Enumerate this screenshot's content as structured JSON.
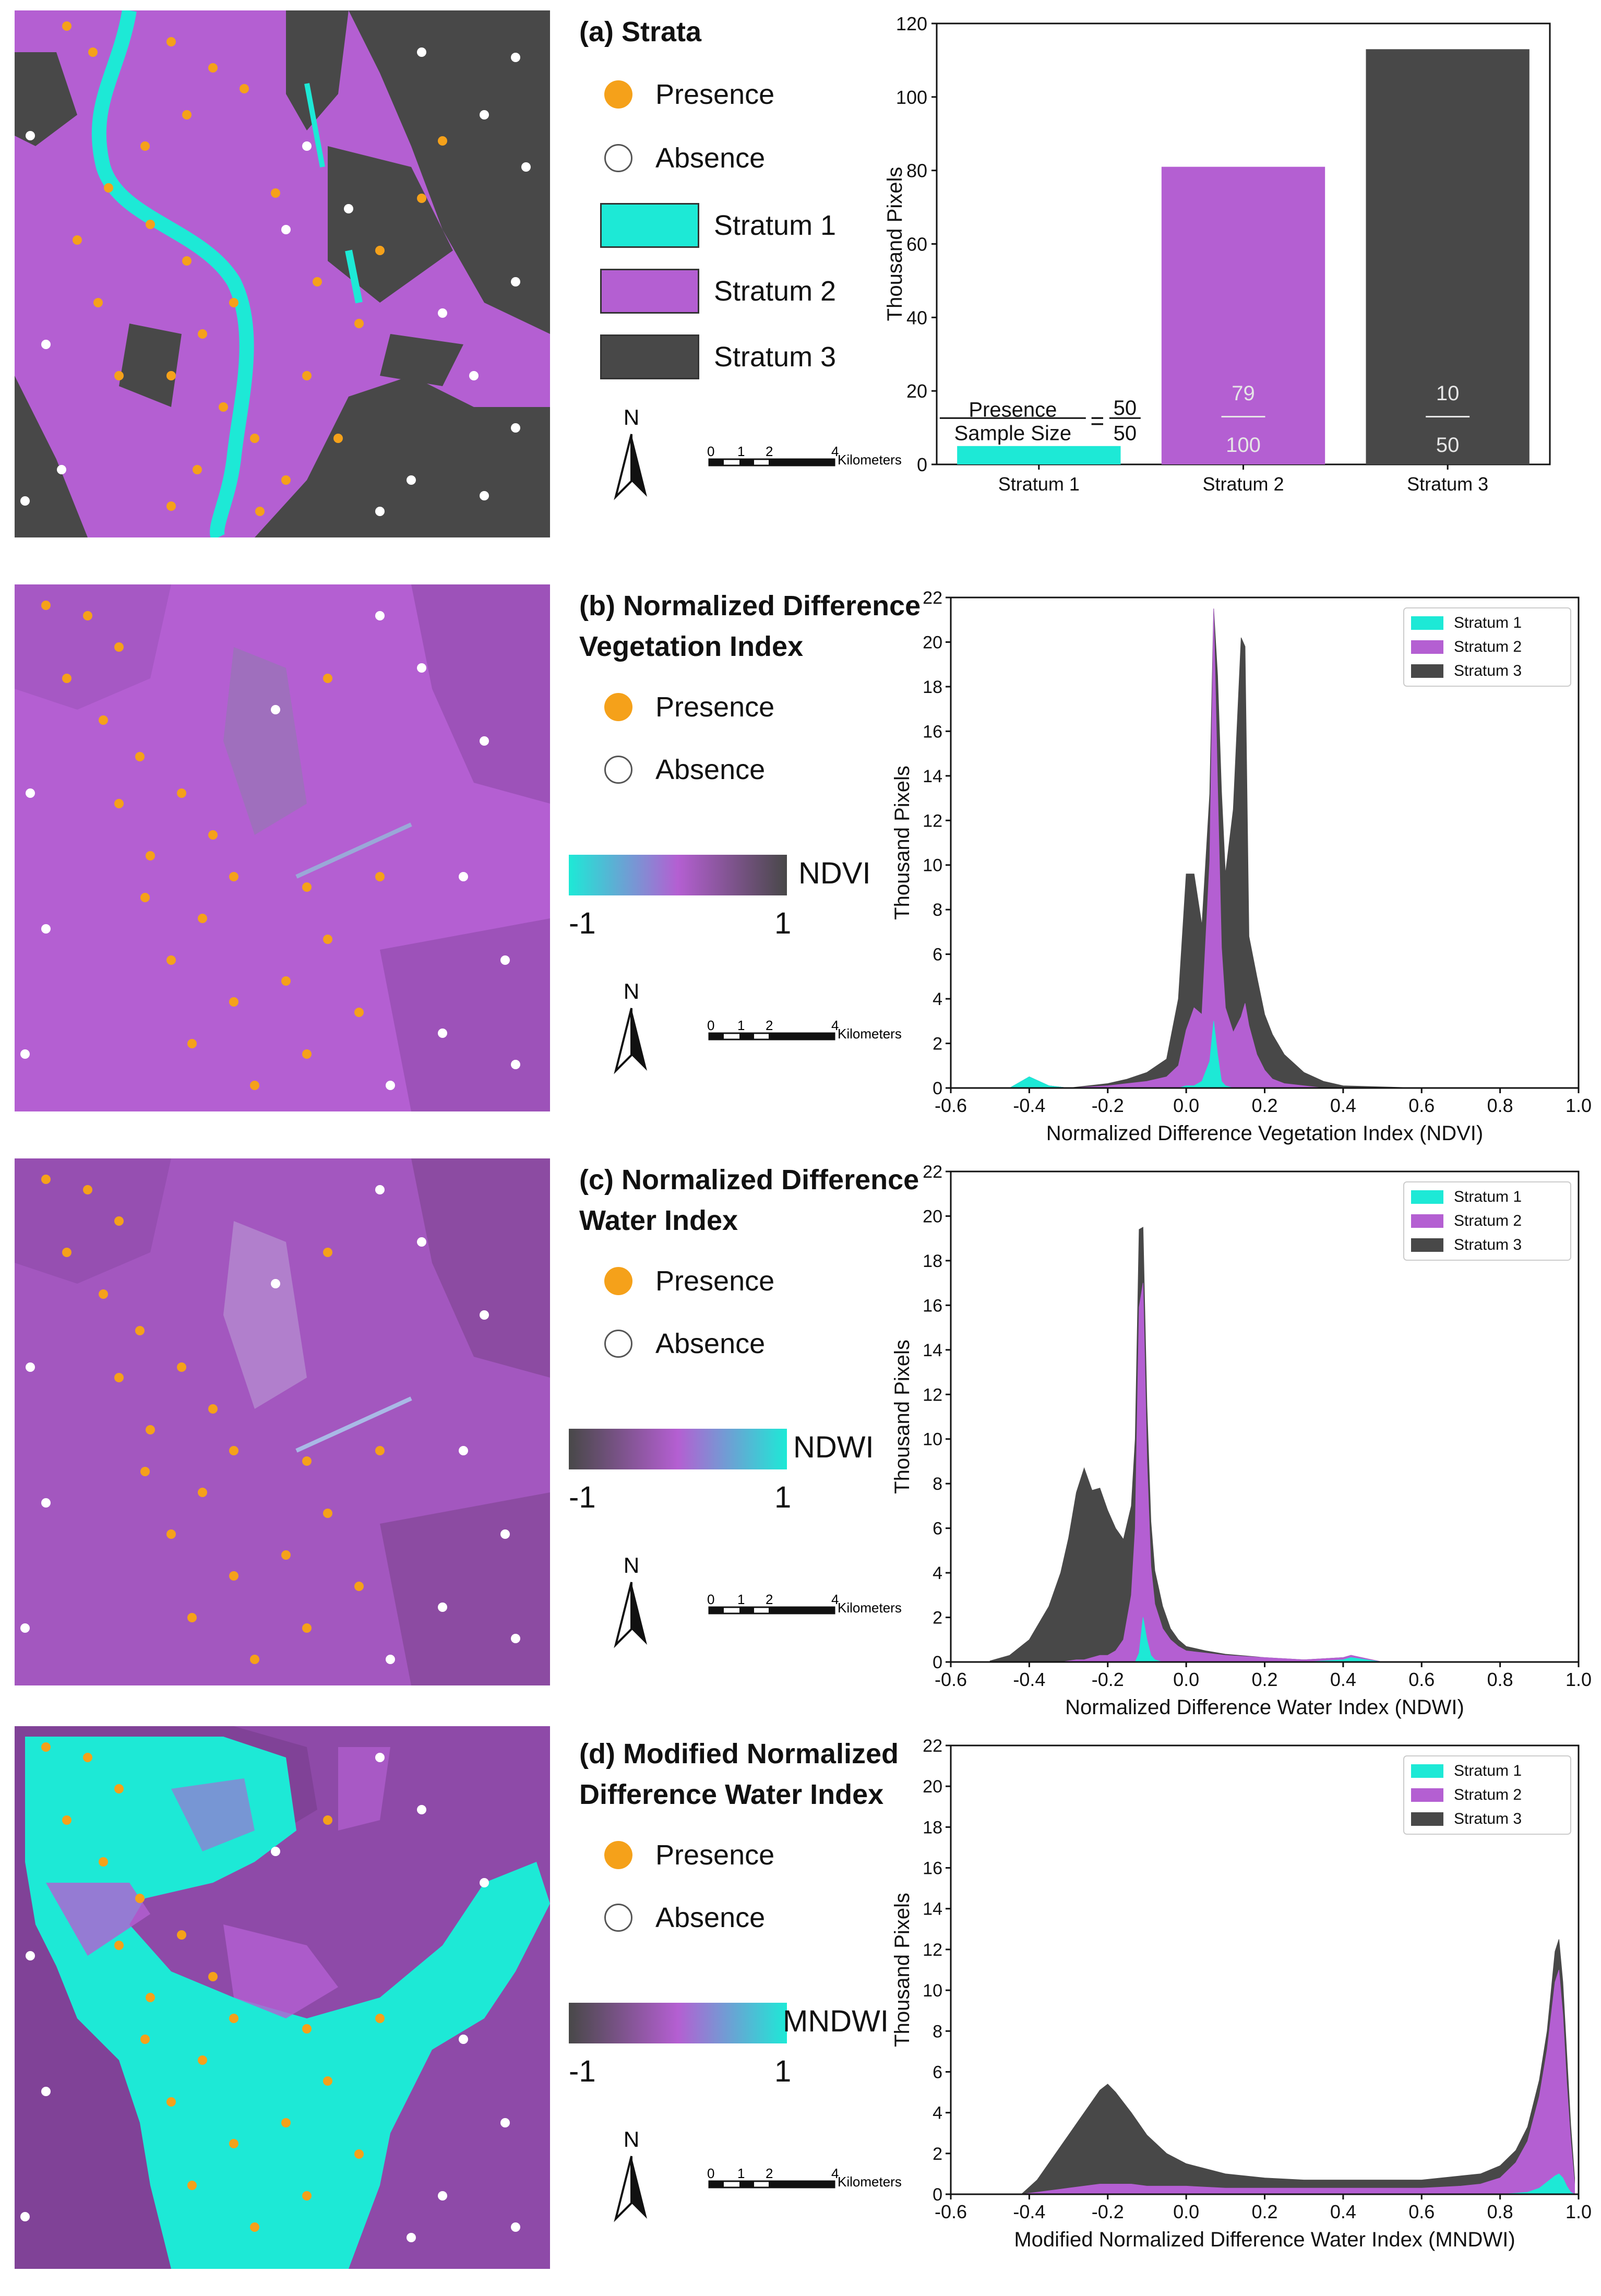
{
  "colors": {
    "stratum1": "#1de9d6",
    "stratum2": "#b45fd2",
    "stratum3": "#484848",
    "presence": "#f5a11a",
    "absence": "#ffffff"
  },
  "common": {
    "presence_label": "Presence",
    "absence_label": "Absence",
    "north_label": "N",
    "scale_ticks": [
      "0",
      "1",
      "2",
      "4"
    ],
    "scale_unit": "Kilometers"
  },
  "panels": [
    {
      "title_lines": [
        "(a) Strata"
      ],
      "legend_swatches": [
        "Stratum 1",
        "Stratum 2",
        "Stratum 3"
      ]
    },
    {
      "title_lines": [
        "(b) Normalized Difference",
        "Vegetation Index"
      ],
      "colorbar": {
        "name": "NDVI",
        "min": "-1",
        "max": "1",
        "gradient": [
          "#1de9d6",
          "#b45fd2",
          "#484848"
        ]
      }
    },
    {
      "title_lines": [
        "(c) Normalized Difference",
        "Water Index"
      ],
      "colorbar": {
        "name": "NDWI",
        "min": "-1",
        "max": "1",
        "gradient": [
          "#484848",
          "#b45fd2",
          "#1de9d6"
        ]
      }
    },
    {
      "title_lines": [
        "(d) Modified Normalized",
        "Difference Water Index"
      ],
      "colorbar": {
        "name": "MNDWI",
        "min": "-1",
        "max": "1",
        "gradient": [
          "#484848",
          "#b45fd2",
          "#1de9d6"
        ]
      }
    }
  ],
  "chart_data": [
    {
      "type": "bar",
      "title": "(a) Strata",
      "categories": [
        "Stratum 1",
        "Stratum 2",
        "Stratum 3"
      ],
      "values": [
        5,
        81,
        113
      ],
      "ylabel": "Thousand Pixels",
      "xlabel": "",
      "ylim": [
        0,
        120
      ],
      "yticks": [
        0,
        20,
        40,
        60,
        80,
        100,
        120
      ],
      "annotations": {
        "legend_numerator": "Presence",
        "legend_denominator": "Sample Size",
        "equals": "=",
        "fractions": [
          [
            "50",
            "50"
          ],
          [
            "79",
            "100"
          ],
          [
            "10",
            "50"
          ]
        ]
      }
    },
    {
      "type": "area",
      "stacked": true,
      "xlabel": "Normalized Difference Vegetation Index (NDVI)",
      "ylabel": "Thousand Pixels",
      "xlim": [
        -0.6,
        1.0
      ],
      "ylim": [
        0,
        22
      ],
      "xticks": [
        "-0.6",
        "-0.4",
        "-0.2",
        "0.0",
        "0.2",
        "0.4",
        "0.6",
        "0.8",
        "1.0"
      ],
      "yticks": [
        "0",
        "2",
        "4",
        "6",
        "8",
        "10",
        "12",
        "14",
        "16",
        "18",
        "20",
        "22"
      ],
      "legend": [
        "Stratum 1",
        "Stratum 2",
        "Stratum 3"
      ],
      "x": [
        -0.45,
        -0.4,
        -0.35,
        -0.3,
        -0.25,
        -0.2,
        -0.15,
        -0.1,
        -0.05,
        -0.02,
        0.0,
        0.02,
        0.04,
        0.06,
        0.07,
        0.08,
        0.09,
        0.1,
        0.12,
        0.14,
        0.15,
        0.16,
        0.18,
        0.2,
        0.22,
        0.25,
        0.3,
        0.35,
        0.4,
        0.5,
        0.6,
        0.7
      ],
      "series": [
        {
          "name": "Stratum 1",
          "values": [
            0,
            0.5,
            0.1,
            0,
            0,
            0,
            0,
            0,
            0,
            0,
            0.1,
            0.1,
            0.3,
            1.2,
            3.0,
            1.5,
            0.3,
            0.1,
            0,
            0,
            0,
            0,
            0,
            0,
            0,
            0,
            0,
            0,
            0,
            0,
            0,
            0
          ]
        },
        {
          "name": "Stratum 2",
          "values": [
            0,
            0,
            0,
            0,
            0.05,
            0.1,
            0.2,
            0.3,
            0.5,
            1.0,
            2.5,
            3.5,
            3.0,
            9.0,
            18.5,
            12.0,
            6.0,
            3.5,
            2.5,
            3.2,
            3.8,
            2.8,
            1.5,
            0.8,
            0.4,
            0.2,
            0.1,
            0,
            0,
            0,
            0,
            0
          ]
        },
        {
          "name": "Stratum 3",
          "values": [
            0,
            0,
            0,
            0,
            0.05,
            0.1,
            0.2,
            0.4,
            0.8,
            3.0,
            7.0,
            6.0,
            4.0,
            3.0,
            0.0,
            5.0,
            7.0,
            6.0,
            10.0,
            17.0,
            16.0,
            4.0,
            3.5,
            2.5,
            2.0,
            1.3,
            0.6,
            0.3,
            0.1,
            0.05,
            0,
            0
          ]
        }
      ]
    },
    {
      "type": "area",
      "stacked": true,
      "xlabel": "Normalized Difference Water Index (NDWI)",
      "ylabel": "Thousand Pixels",
      "xlim": [
        -0.6,
        1.0
      ],
      "ylim": [
        0,
        22
      ],
      "xticks": [
        "-0.6",
        "-0.4",
        "-0.2",
        "0.0",
        "0.2",
        "0.4",
        "0.6",
        "0.8",
        "1.0"
      ],
      "yticks": [
        "0",
        "2",
        "4",
        "6",
        "8",
        "10",
        "12",
        "14",
        "16",
        "18",
        "20",
        "22"
      ],
      "legend": [
        "Stratum 1",
        "Stratum 2",
        "Stratum 3"
      ],
      "x": [
        -0.5,
        -0.45,
        -0.4,
        -0.35,
        -0.32,
        -0.3,
        -0.28,
        -0.26,
        -0.24,
        -0.22,
        -0.2,
        -0.18,
        -0.16,
        -0.14,
        -0.13,
        -0.12,
        -0.11,
        -0.1,
        -0.09,
        -0.08,
        -0.06,
        -0.04,
        -0.02,
        0.0,
        0.05,
        0.1,
        0.2,
        0.3,
        0.4,
        0.42,
        0.5,
        0.6
      ],
      "series": [
        {
          "name": "Stratum 1",
          "values": [
            0,
            0,
            0,
            0,
            0,
            0,
            0,
            0,
            0,
            0,
            0,
            0,
            0,
            0,
            0,
            0.4,
            2.0,
            1.0,
            0.3,
            0.1,
            0,
            0,
            0,
            0,
            0,
            0,
            0,
            0,
            0.1,
            0.2,
            0,
            0
          ]
        },
        {
          "name": "Stratum 2",
          "values": [
            0,
            0,
            0,
            0,
            0,
            0.05,
            0.1,
            0.1,
            0.2,
            0.3,
            0.3,
            0.5,
            1.0,
            3.0,
            6.0,
            15.5,
            15.0,
            8.0,
            4.0,
            2.5,
            1.5,
            1.0,
            0.7,
            0.5,
            0.4,
            0.3,
            0.2,
            0.1,
            0.1,
            0.1,
            0,
            0
          ]
        },
        {
          "name": "Stratum 3",
          "values": [
            0.05,
            0.3,
            1.0,
            2.5,
            4.0,
            5.5,
            7.5,
            8.6,
            7.5,
            7.5,
            6.5,
            5.5,
            4.5,
            4.0,
            4.0,
            3.5,
            2.5,
            2.5,
            2.0,
            1.5,
            1.0,
            0.5,
            0.3,
            0.2,
            0.1,
            0.05,
            0,
            0,
            0,
            0,
            0,
            0
          ]
        }
      ]
    },
    {
      "type": "area",
      "stacked": true,
      "xlabel": "Modified Normalized Difference Water Index (MNDWI)",
      "ylabel": "Thousand Pixels",
      "xlim": [
        -0.6,
        1.0
      ],
      "ylim": [
        0,
        22
      ],
      "xticks": [
        "-0.6",
        "-0.4",
        "-0.2",
        "0.0",
        "0.2",
        "0.4",
        "0.6",
        "0.8",
        "1.0"
      ],
      "yticks": [
        "0",
        "2",
        "4",
        "6",
        "8",
        "10",
        "12",
        "14",
        "16",
        "18",
        "20",
        "22"
      ],
      "legend": [
        "Stratum 1",
        "Stratum 2",
        "Stratum 3"
      ],
      "x": [
        -0.42,
        -0.38,
        -0.34,
        -0.3,
        -0.26,
        -0.22,
        -0.2,
        -0.18,
        -0.14,
        -0.1,
        -0.05,
        0.0,
        0.1,
        0.2,
        0.3,
        0.4,
        0.5,
        0.6,
        0.7,
        0.75,
        0.8,
        0.84,
        0.87,
        0.9,
        0.92,
        0.94,
        0.95,
        0.96,
        0.97,
        0.98,
        0.99
      ],
      "series": [
        {
          "name": "Stratum 1",
          "values": [
            0,
            0,
            0,
            0,
            0,
            0,
            0,
            0,
            0,
            0,
            0,
            0,
            0,
            0,
            0,
            0,
            0,
            0,
            0,
            0,
            0,
            0.05,
            0.1,
            0.3,
            0.6,
            0.9,
            1.0,
            0.8,
            0.4,
            0.1,
            0
          ]
        },
        {
          "name": "Stratum 2",
          "values": [
            0,
            0.1,
            0.2,
            0.3,
            0.4,
            0.5,
            0.5,
            0.5,
            0.5,
            0.4,
            0.4,
            0.4,
            0.3,
            0.3,
            0.3,
            0.3,
            0.3,
            0.3,
            0.4,
            0.5,
            0.8,
            1.5,
            2.5,
            4.5,
            6.5,
            9.5,
            10.0,
            8.0,
            5.0,
            2.5,
            0.5
          ]
        },
        {
          "name": "Stratum 3",
          "values": [
            0,
            0.6,
            1.6,
            2.6,
            3.6,
            4.6,
            4.9,
            4.5,
            3.5,
            2.5,
            1.6,
            1.1,
            0.7,
            0.5,
            0.4,
            0.4,
            0.4,
            0.4,
            0.5,
            0.5,
            0.6,
            0.6,
            0.7,
            0.8,
            0.9,
            1.5,
            1.5,
            1.6,
            1.5,
            0.8,
            0.3
          ]
        }
      ]
    }
  ]
}
